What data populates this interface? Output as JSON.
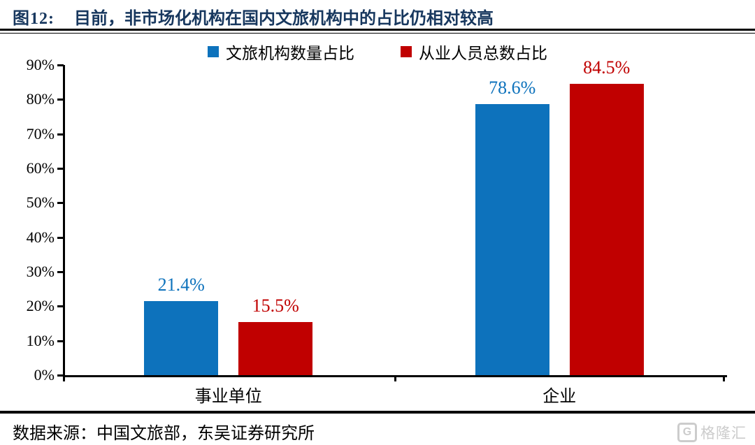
{
  "header": {
    "figure_label": "图12:",
    "title": "目前，非市场化机构在国内文旅机构中的占比仍相对较高"
  },
  "chart_data": {
    "type": "bar",
    "categories": [
      "事业单位",
      "企业"
    ],
    "series": [
      {
        "name": "文旅机构数量占比",
        "color": "#0D72BC",
        "values": [
          21.4,
          78.6
        ],
        "labels": [
          "21.4%",
          "78.6%"
        ]
      },
      {
        "name": "从业人员总数占比",
        "color": "#C00000",
        "values": [
          15.5,
          84.5
        ],
        "labels": [
          "15.5%",
          "84.5%"
        ]
      }
    ],
    "ylabel": "",
    "xlabel": "",
    "ylim": [
      0,
      90
    ],
    "ytick_labels": [
      "0%",
      "10%",
      "20%",
      "30%",
      "40%",
      "50%",
      "60%",
      "70%",
      "80%",
      "90%"
    ],
    "grid": false,
    "legend_position": "top-center"
  },
  "footer": {
    "source": "数据来源：中国文旅部，东吴证券研究所",
    "watermark_icon": "G",
    "watermark_text": "格隆汇"
  },
  "colors": {
    "title": "#17375E",
    "axis": "#000000",
    "series_blue": "#0D72BC",
    "series_red": "#C00000",
    "watermark": "#CCCCCC"
  }
}
